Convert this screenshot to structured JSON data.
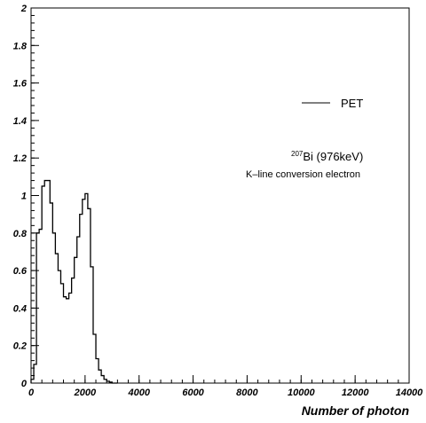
{
  "chart_data": {
    "type": "line",
    "step": true,
    "title": "",
    "xlabel": "Number of photon",
    "ylabel": "",
    "xlim": [
      0,
      14000
    ],
    "ylim": [
      0,
      2
    ],
    "xticks": [
      "0",
      "2000",
      "4000",
      "6000",
      "8000",
      "10000",
      "12000",
      "14000"
    ],
    "yticks": [
      "0",
      "0.2",
      "0.4",
      "0.6",
      "0.8",
      "1",
      "1.2",
      "1.4",
      "1.6",
      "1.8",
      "2"
    ],
    "grid": false,
    "legend": {
      "placement": "right",
      "entries": [
        "PET"
      ]
    },
    "annotations": {
      "isotope_mass": "207",
      "isotope_rest": "Bi (976keV)",
      "line2": "K–line conversion electron"
    },
    "series": [
      {
        "name": "PET",
        "color": "#000000",
        "bin_edges": [
          0,
          100,
          200,
          300,
          400,
          500,
          600,
          700,
          800,
          900,
          1000,
          1100,
          1200,
          1300,
          1400,
          1500,
          1600,
          1700,
          1800,
          1900,
          2000,
          2100,
          2200,
          2300,
          2400,
          2500,
          2600,
          2700,
          2800,
          2900,
          3000,
          3100,
          3200
        ],
        "values": [
          0.02,
          0.1,
          0.8,
          0.82,
          1.05,
          1.08,
          1.08,
          0.96,
          0.8,
          0.69,
          0.6,
          0.53,
          0.46,
          0.45,
          0.48,
          0.56,
          0.67,
          0.78,
          0.9,
          0.98,
          1.01,
          0.93,
          0.62,
          0.26,
          0.13,
          0.07,
          0.04,
          0.02,
          0.01,
          0.005,
          0.0,
          0.0
        ]
      }
    ]
  }
}
